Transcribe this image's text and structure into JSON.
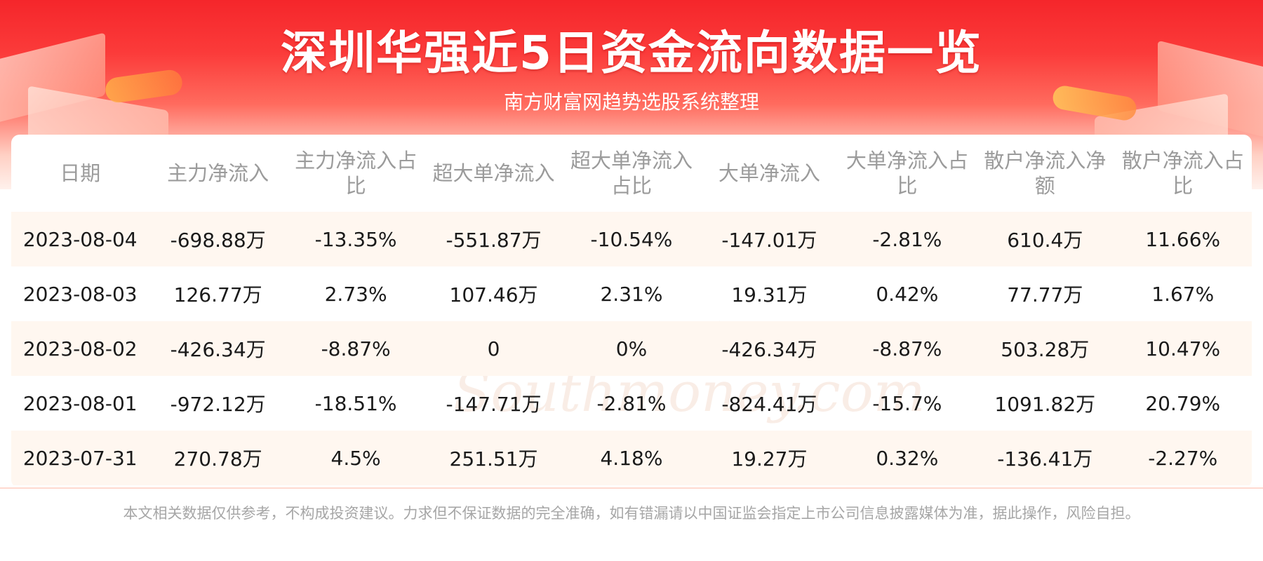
{
  "header": {
    "title": "深圳华强近5日资金流向数据一览",
    "subtitle": "南方财富网趋势选股系统整理"
  },
  "watermark": {
    "cn": "南方财富网",
    "en": "Southmoney.com"
  },
  "table": {
    "columns": [
      "日期",
      "主力净流入",
      "主力净流入占比",
      "超大单净流入",
      "超大单净流入占比",
      "大单净流入",
      "大单净流入占比",
      "散户净流入净额",
      "散户净流入占比"
    ],
    "rows": [
      [
        "2023-08-04",
        "-698.88万",
        "-13.35%",
        "-551.87万",
        "-10.54%",
        "-147.01万",
        "-2.81%",
        "610.4万",
        "11.66%"
      ],
      [
        "2023-08-03",
        "126.77万",
        "2.73%",
        "107.46万",
        "2.31%",
        "19.31万",
        "0.42%",
        "77.77万",
        "1.67%"
      ],
      [
        "2023-08-02",
        "-426.34万",
        "-8.87%",
        "0",
        "0%",
        "-426.34万",
        "-8.87%",
        "503.28万",
        "10.47%"
      ],
      [
        "2023-08-01",
        "-972.12万",
        "-18.51%",
        "-147.71万",
        "-2.81%",
        "-824.41万",
        "-15.7%",
        "1091.82万",
        "20.79%"
      ],
      [
        "2023-07-31",
        "270.78万",
        "4.5%",
        "251.51万",
        "4.18%",
        "19.27万",
        "0.32%",
        "-136.41万",
        "-2.27%"
      ]
    ]
  },
  "footer": {
    "disclaimer": "本文相关数据仅供参考，不构成投资建议。力求但不保证数据的完全准确，如有错漏请以中国证监会指定上市公司信息披露媒体为准，据此操作，风险自担。"
  },
  "colors": {
    "banner_red": "#f5262b",
    "row_alt": "#fff7f0",
    "header_text": "#9b9b9b",
    "body_text": "#1a1a1a"
  }
}
